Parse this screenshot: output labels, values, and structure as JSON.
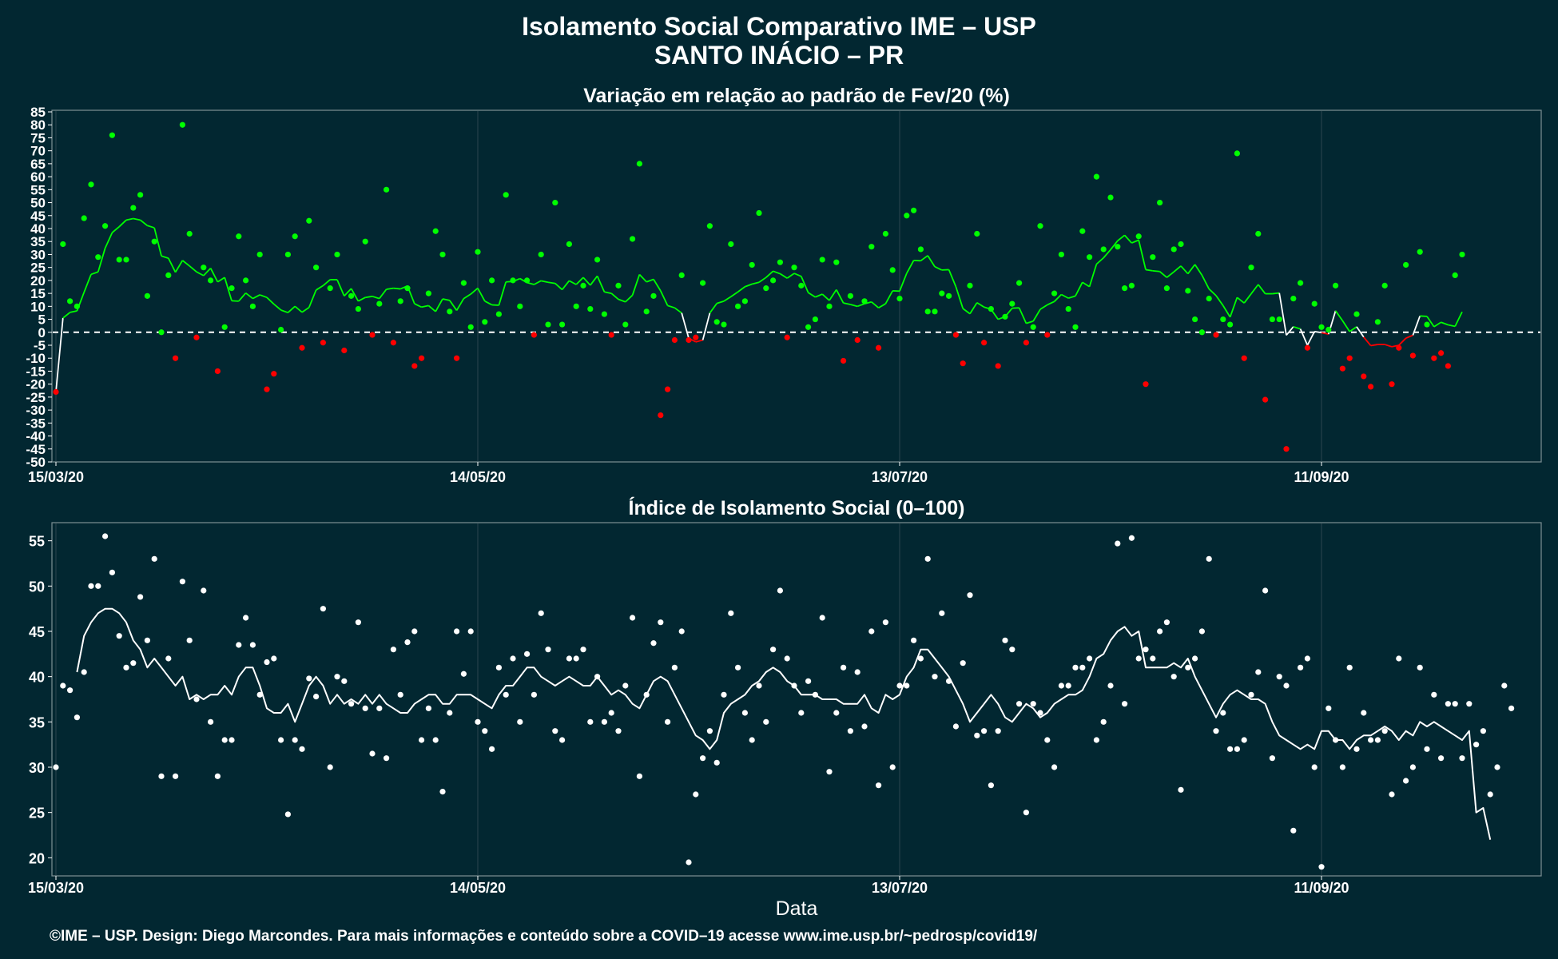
{
  "title": "Isolamento Social Comparativo IME – USP",
  "subtitle": "SANTO INÁCIO – PR",
  "xlabel": "Data",
  "footer": "©IME – USP. Design: Diego Marcondes. Para mais informações e conteúdo sobre a COVID–19 acesse www.ime.usp.br/~pedrosp/covid19/",
  "colors": {
    "background": "#022731",
    "positive": "#00ff00",
    "negative": "#ff0000",
    "neutral": "#ffffff",
    "grid": "#2c4650"
  },
  "chart_data": [
    {
      "type": "scatter",
      "title": "Variação em relação ao padrão de Fev/20 (%)",
      "x_start": "15/03/20",
      "x_ticks": [
        {
          "day": 0,
          "label": "15/03/20"
        },
        {
          "day": 60,
          "label": "14/05/20"
        },
        {
          "day": 120,
          "label": "13/07/20"
        },
        {
          "day": 180,
          "label": "11/09/20"
        }
      ],
      "ylim": [
        -50,
        85
      ],
      "y_ticks": [
        85,
        80,
        75,
        70,
        65,
        60,
        55,
        50,
        45,
        40,
        35,
        30,
        25,
        20,
        15,
        10,
        5,
        0,
        -5,
        -10,
        -15,
        -20,
        -25,
        -30,
        -35,
        -40,
        -45,
        -50
      ],
      "reference_line": 0,
      "points": [
        -23,
        34,
        12,
        10,
        44,
        57,
        29,
        41,
        76,
        28,
        28,
        48,
        53,
        14,
        35,
        0,
        22,
        -10,
        80,
        38,
        -2,
        25,
        20,
        -15,
        2,
        17,
        37,
        20,
        10,
        30,
        -22,
        -16,
        1,
        30,
        37,
        -6,
        43,
        25,
        -4,
        17,
        30,
        -7,
        14,
        9,
        35,
        -1,
        11,
        55,
        -4,
        12,
        17,
        -13,
        -10,
        15,
        39,
        30,
        8,
        -10,
        19,
        2,
        31,
        4,
        20,
        7,
        53,
        20,
        10,
        20,
        -1,
        30,
        3,
        50,
        3,
        34,
        10,
        18,
        9,
        28,
        7,
        -1,
        18,
        3,
        36,
        65,
        8,
        14,
        -32,
        -22,
        -3,
        22,
        -3,
        -2,
        19,
        41,
        4,
        3,
        34,
        10,
        12,
        26,
        46,
        17,
        20,
        27,
        -2,
        25,
        18,
        2,
        5,
        28,
        10,
        27,
        -11,
        14,
        -3,
        12,
        33,
        -6,
        38,
        24,
        13,
        45,
        47,
        32,
        8,
        8,
        15,
        14,
        -1,
        -12,
        18,
        38,
        -4,
        9,
        -13,
        6,
        11,
        19,
        -4,
        2,
        41,
        -1,
        15,
        30,
        9,
        2,
        39,
        29,
        60,
        32,
        52,
        33,
        17,
        18,
        37,
        -20,
        29,
        50,
        17,
        32,
        34,
        16,
        5,
        0,
        13,
        -1,
        5,
        3,
        69,
        -10,
        25,
        38,
        -26,
        5,
        5,
        -45,
        13,
        19,
        -6,
        11,
        2,
        1,
        18,
        -14,
        -10,
        7,
        -17,
        -21,
        4,
        18,
        -20,
        -6,
        26,
        -9,
        31,
        3,
        -10,
        -8,
        -13,
        22,
        30
      ]
    },
    {
      "type": "scatter",
      "title": "Índice de Isolamento Social (0–100)",
      "x_start": "15/03/20",
      "x_ticks": [
        {
          "day": 0,
          "label": "15/03/20"
        },
        {
          "day": 60,
          "label": "14/05/20"
        },
        {
          "day": 120,
          "label": "13/07/20"
        },
        {
          "day": 180,
          "label": "11/09/20"
        }
      ],
      "ylim": [
        18,
        57
      ],
      "y_ticks": [
        55,
        50,
        45,
        40,
        35,
        30,
        25,
        20
      ],
      "points": [
        30,
        39,
        38.5,
        35.5,
        40.5,
        50,
        50,
        55.5,
        51.5,
        44.5,
        41,
        41.5,
        48.8,
        44,
        53,
        29,
        42,
        29,
        50.5,
        44,
        37.5,
        49.5,
        35,
        29,
        33,
        33,
        43.5,
        46.5,
        43.5,
        38,
        41.6,
        42,
        33,
        24.8,
        33,
        32,
        39.8,
        37.8,
        47.5,
        30,
        40,
        39.5,
        37,
        46,
        36.5,
        31.5,
        36.5,
        31,
        43,
        38,
        43.8,
        45,
        33,
        36.5,
        33,
        27.3,
        36,
        45,
        40.3,
        45,
        35,
        34,
        32,
        41,
        38,
        42,
        35,
        42.5,
        38,
        47,
        43,
        34,
        33,
        42,
        42,
        43,
        35,
        40,
        35,
        36,
        34,
        39,
        46.5,
        29,
        38,
        43.7,
        46,
        35,
        41,
        45,
        19.5,
        27,
        31,
        34,
        30.5,
        38,
        47,
        41,
        36,
        33,
        39,
        35,
        43,
        49.5,
        42,
        39,
        36,
        39.5,
        38,
        46.5,
        29.5,
        36,
        41,
        34,
        40.5,
        34.5,
        45,
        28,
        46,
        30,
        39,
        39,
        44,
        42,
        53,
        40,
        47,
        39.5,
        34.5,
        41.5,
        49,
        33.5,
        34,
        28,
        34,
        44,
        43,
        37,
        25,
        37,
        36,
        33,
        30,
        39,
        39,
        41,
        41,
        42,
        33,
        35,
        39,
        54.7,
        37,
        55.3,
        42,
        43,
        42,
        45,
        46,
        40,
        27.5,
        41,
        42,
        45,
        53,
        34,
        36,
        32,
        32,
        33,
        38,
        40.5,
        49.5,
        31,
        40,
        39,
        23,
        41,
        42,
        30,
        19,
        36.5,
        33,
        30,
        41,
        32,
        36,
        33,
        33,
        34,
        27,
        42,
        28.5,
        30,
        41,
        32,
        38,
        31,
        37,
        37,
        31,
        37,
        32.5,
        34,
        27,
        30,
        39,
        36.5
      ],
      "moving_avg_start_day": 3,
      "moving_avg": [
        40.5,
        44.5,
        46,
        47,
        47.5,
        47.5,
        47,
        46,
        44,
        43,
        41,
        42,
        41,
        40,
        39,
        40,
        37.5,
        38,
        37.5,
        38,
        38,
        39,
        38,
        40,
        41,
        41,
        39,
        36.5,
        36,
        36,
        37,
        35,
        37,
        39,
        40,
        39,
        37,
        38,
        37,
        37.5,
        37,
        38,
        37,
        38,
        37,
        36.5,
        36,
        36,
        37,
        37.5,
        38,
        38,
        37,
        37,
        38,
        38,
        38,
        37.5,
        37,
        36.5,
        38,
        39,
        39,
        40,
        41,
        41,
        40,
        39.5,
        39,
        39.5,
        40,
        39.5,
        39,
        39,
        40,
        39,
        38,
        38.5,
        38,
        37,
        36.5,
        38,
        39.5,
        40,
        39.5,
        38,
        36.5,
        35,
        33.5,
        33,
        32,
        33,
        36,
        37,
        37.5,
        38,
        39,
        39.5,
        40.5,
        41,
        40.5,
        39.5,
        39,
        38,
        38,
        38,
        37.5,
        37.5,
        37.5,
        37,
        37,
        37,
        38,
        36.5,
        36,
        38,
        37.5,
        38,
        40,
        41,
        43,
        43,
        42,
        41,
        40,
        38.5,
        37,
        35,
        36,
        37,
        38,
        37,
        35.5,
        35,
        36,
        37,
        36.5,
        35.5,
        36,
        37,
        37.5,
        38,
        38,
        38.5,
        40,
        42,
        42.5,
        44,
        45,
        45.5,
        44.5,
        45,
        41,
        41,
        41,
        41,
        41.5,
        41,
        42,
        40,
        38.5,
        37,
        35.5,
        37,
        38,
        38.5,
        38,
        37.5,
        37.5,
        37,
        35,
        33.5,
        33,
        32.5,
        32,
        32.5,
        32,
        34,
        34,
        33,
        33,
        32,
        33,
        33.5,
        33.5,
        34,
        34.5,
        34,
        33,
        34,
        33.5,
        35,
        34.5,
        35,
        34.5,
        34,
        33.5,
        33,
        34,
        25,
        25.5,
        22
      ]
    }
  ]
}
